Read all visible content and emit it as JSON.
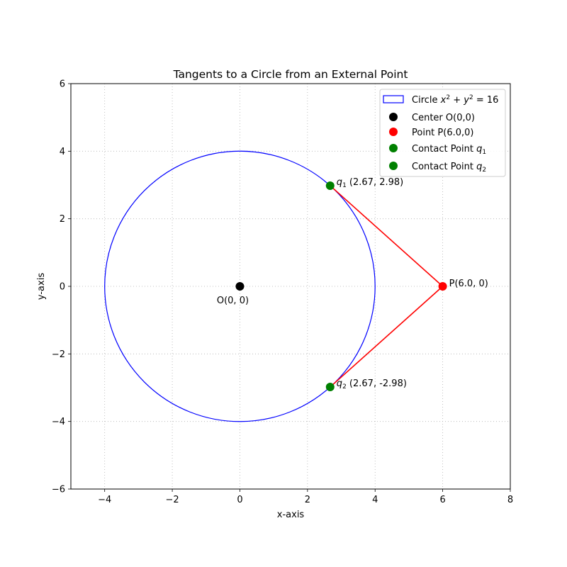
{
  "chart_data": {
    "type": "scatter",
    "title": "Tangents to a Circle from an External Point",
    "xlabel": "x-axis",
    "ylabel": "y-axis",
    "xlim": [
      -5,
      8
    ],
    "ylim": [
      -6,
      6
    ],
    "xticks": [
      -4,
      -2,
      0,
      2,
      4,
      6,
      8
    ],
    "yticks": [
      -6,
      -4,
      -2,
      0,
      2,
      4,
      6
    ],
    "xtick_labels": [
      "−4",
      "−2",
      "0",
      "2",
      "4",
      "6",
      "8"
    ],
    "ytick_labels": [
      "−6",
      "−4",
      "−2",
      "0",
      "2",
      "4",
      "6"
    ],
    "grid": true,
    "legend_position": "top-right",
    "circle": {
      "cx": 0,
      "cy": 0,
      "r": 4,
      "color": "#0000ff"
    },
    "points": [
      {
        "name": "center",
        "x": 0,
        "y": 0,
        "color": "#000000",
        "label": "O(0, 0)"
      },
      {
        "name": "point-p",
        "x": 6,
        "y": 0,
        "color": "#ff0000",
        "label": "P(6.0, 0)"
      },
      {
        "name": "contact-q1",
        "x": 2.67,
        "y": 2.98,
        "color": "#008000",
        "label_sym": "q",
        "label_sub": "1",
        "label_rest": " (2.67, 2.98)"
      },
      {
        "name": "contact-q2",
        "x": 2.67,
        "y": -2.98,
        "color": "#008000",
        "label_sym": "q",
        "label_sub": "2",
        "label_rest": " (2.67, -2.98)"
      }
    ],
    "tangent_lines": [
      {
        "from": [
          6,
          0
        ],
        "to": [
          2.67,
          2.98
        ],
        "color": "#ff0000"
      },
      {
        "from": [
          6,
          0
        ],
        "to": [
          2.67,
          -2.98
        ],
        "color": "#ff0000"
      }
    ],
    "legend": [
      {
        "kind": "circle-patch",
        "color": "#0000ff",
        "text": "Circle ",
        "math_a": "x",
        "sup_a": "2",
        "mid": " + ",
        "math_b": "y",
        "sup_b": "2",
        "tail": " = 16"
      },
      {
        "kind": "marker",
        "color": "#000000",
        "text": "Center O(0,0)"
      },
      {
        "kind": "marker",
        "color": "#ff0000",
        "text": "Point P(6.0,0)"
      },
      {
        "kind": "marker",
        "color": "#008000",
        "text": "Contact Point ",
        "math": "q",
        "sub": "1"
      },
      {
        "kind": "marker",
        "color": "#008000",
        "text": "Contact Point ",
        "math": "q",
        "sub": "2"
      }
    ]
  }
}
